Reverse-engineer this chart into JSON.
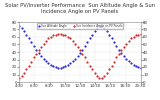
{
  "title": "Solar PV/Inverter Performance  Sun Altitude Angle & Sun Incidence Angle on PV Panels",
  "bg_color": "#ffffff",
  "plot_bg": "#ffffff",
  "grid_color": "#aaaaaa",
  "blue_color": "#0000cc",
  "red_color": "#cc0000",
  "blue_label": "Sun Altitude Angle",
  "red_label": "Sun Incidence Angle on PV Panels",
  "x_values": [
    0,
    1,
    2,
    3,
    4,
    5,
    6,
    7,
    8,
    9,
    10,
    11,
    12,
    13,
    14,
    15,
    16,
    17,
    18,
    19,
    20,
    21,
    22,
    23,
    24,
    25,
    26,
    27,
    28,
    29,
    30,
    31,
    32,
    33,
    34,
    35,
    36,
    37,
    38,
    39,
    40,
    41,
    42,
    43,
    44,
    45,
    46,
    47,
    48,
    49,
    50
  ],
  "blue_y": [
    75,
    72,
    68,
    63,
    58,
    53,
    48,
    43,
    39,
    35,
    31,
    28,
    25,
    23,
    21,
    20,
    19,
    19,
    20,
    21,
    23,
    25,
    28,
    31,
    35,
    39,
    43,
    48,
    53,
    58,
    63,
    68,
    72,
    75,
    75,
    72,
    68,
    63,
    58,
    53,
    48,
    43,
    39,
    35,
    31,
    28,
    25,
    23,
    21,
    20,
    19
  ],
  "red_y": [
    5,
    8,
    12,
    17,
    22,
    27,
    33,
    38,
    43,
    47,
    51,
    55,
    58,
    60,
    62,
    63,
    64,
    64,
    63,
    62,
    60,
    58,
    55,
    51,
    47,
    43,
    38,
    33,
    27,
    22,
    17,
    12,
    8,
    5,
    5,
    8,
    12,
    17,
    22,
    27,
    33,
    38,
    43,
    47,
    51,
    55,
    58,
    60,
    62,
    63,
    64
  ],
  "ylim_left": [
    0,
    80
  ],
  "ylim_right": [
    0,
    80
  ],
  "xlim": [
    0,
    50
  ],
  "yticks_left": [
    0,
    10,
    20,
    30,
    40,
    50,
    60,
    70,
    80
  ],
  "yticks_right": [
    0,
    10,
    20,
    30,
    40,
    50,
    60,
    70,
    80
  ],
  "title_fontsize": 3.8,
  "tick_fontsize": 2.8,
  "markersize": 1.0,
  "text_color": "#333333"
}
